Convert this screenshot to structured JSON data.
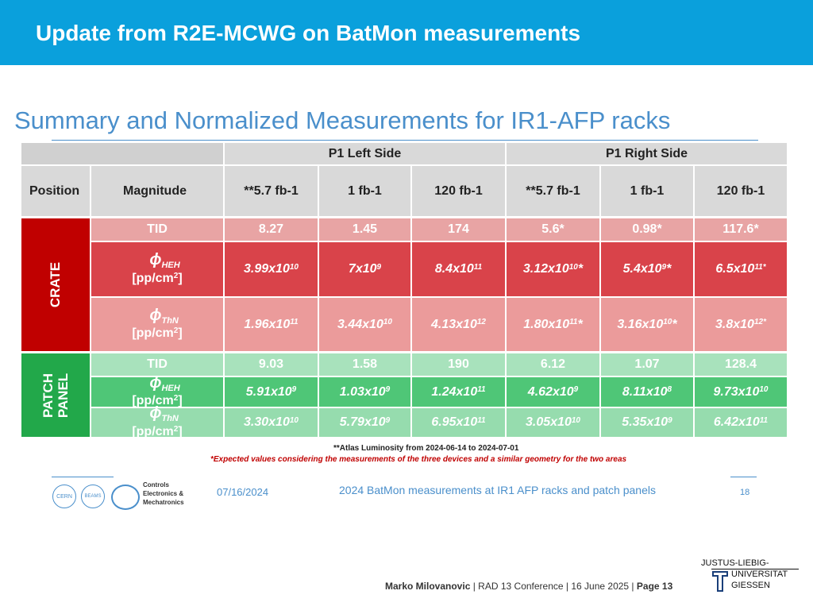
{
  "header": {
    "title": "Update from R2E-MCWG on BatMon measurements"
  },
  "slide_title": "Summary and Normalized Measurements for IR1-AFP racks",
  "table": {
    "groups": [
      "P1 Left Side",
      "P1 Right Side"
    ],
    "columns": [
      "Position",
      "Magnitude",
      "**5.7 fb-1",
      "1 fb-1",
      "120 fb-1",
      "**5.7 fb-1",
      "1 fb-1",
      "120 fb-1"
    ],
    "sections": [
      {
        "label": [
          "CRATE"
        ],
        "rows": [
          {
            "magnitude": "TID",
            "cells": [
              "8.27",
              "1.45",
              "174",
              "5.6*",
              "0.98*",
              "117.6*"
            ]
          },
          {
            "magnitude": {
              "symbol": "ϕ",
              "sub": "HEH",
              "unit": "[pp/cm",
              "unit_sup": "2",
              "unit_end": "]"
            },
            "cells": [
              [
                "3.99x10",
                "10"
              ],
              [
                "7x10",
                "9"
              ],
              [
                "8.4x10",
                "11"
              ],
              [
                "3.12x10",
                "10",
                "*"
              ],
              [
                "5.4x10",
                "9",
                "*"
              ],
              [
                "6.5x10",
                "11*"
              ]
            ]
          },
          {
            "magnitude": {
              "symbol": "ϕ",
              "sub": "ThN",
              "unit": "[pp/cm",
              "unit_sup": "2",
              "unit_end": "]"
            },
            "cells": [
              [
                "1.96x10",
                "11"
              ],
              [
                "3.44x10",
                "10"
              ],
              [
                "4.13x10",
                "12"
              ],
              [
                "1.80x10",
                "11",
                "*"
              ],
              [
                "3.16x10",
                "10",
                "*"
              ],
              [
                "3.8x10",
                "12*"
              ]
            ]
          }
        ]
      },
      {
        "label": [
          "PATCH",
          "PANEL"
        ],
        "rows": [
          {
            "magnitude": "TID",
            "cells": [
              "9.03",
              "1.58",
              "190",
              "6.12",
              "1.07",
              "128.4"
            ]
          },
          {
            "magnitude": {
              "symbol": "ϕ",
              "sub": "HEH",
              "unit": "[pp/cm",
              "unit_sup": "2",
              "unit_end": "]"
            },
            "cells": [
              [
                "5.91x10",
                "9"
              ],
              [
                "1.03x10",
                "9"
              ],
              [
                "1.24x10",
                "11"
              ],
              [
                "4.62x10",
                "9"
              ],
              [
                "8.11x10",
                "8"
              ],
              [
                "9.73x10",
                "10"
              ]
            ]
          },
          {
            "magnitude": {
              "symbol": "ϕ",
              "sub": "ThN",
              "unit": "[pp/cm",
              "unit_sup": "2",
              "unit_end": "]"
            },
            "cells": [
              [
                "3.30x10",
                "10"
              ],
              [
                "5.79x10",
                "9"
              ],
              [
                "6.95x10",
                "11"
              ],
              [
                "3.05x10",
                "10"
              ],
              [
                "5.35x10",
                "9"
              ],
              [
                "6.42x10",
                "11"
              ]
            ]
          }
        ]
      }
    ]
  },
  "notes": [
    "**Atlas Luminosity from 2024-06-14 to 2024-07-01",
    "*Expected values considering the measurements of the three devices and a similar geometry for the two areas"
  ],
  "inner_footer": {
    "logos": [
      "CERN",
      "BEAMS"
    ],
    "unit": [
      "Controls",
      "Electronics &",
      "Mechatronics"
    ],
    "date": "07/16/2024",
    "title": "2024 BatMon measurements at IR1 AFP racks and patch panels",
    "page": "18"
  },
  "footer": {
    "author": "Marko Milovanovic",
    "conference": "RAD 13 Conference",
    "date": "16 June 2025",
    "page": "Page 13"
  },
  "university": [
    "JUSTUS-LIEBIG-",
    "UNIVERSITAT",
    "GIESSEN"
  ]
}
